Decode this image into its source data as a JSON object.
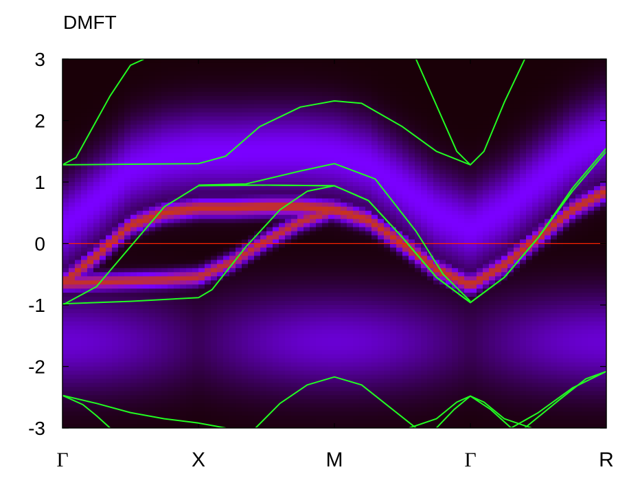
{
  "chart_data": {
    "type": "heatmap",
    "title": "DMFT",
    "xlabel": "",
    "ylabel": "",
    "ylim": [
      -3,
      3
    ],
    "yticks": [
      "3",
      "2",
      "1",
      "0",
      "-1",
      "-2",
      "-3"
    ],
    "ytick_values": [
      3,
      2,
      1,
      0,
      -1,
      -2,
      -3
    ],
    "x_path_labels": [
      "Γ",
      "X",
      "M",
      "Γ",
      "R"
    ],
    "x_path_positions": [
      0,
      1,
      2,
      3,
      4
    ],
    "fermi_level": 0,
    "colors": {
      "background_min": "#1a0008",
      "mid": "#7a00ff",
      "peak": "#d23a00",
      "band_lines": "#22ff22",
      "fermi_line": "#ff2200"
    },
    "spectral_band": {
      "k": [
        0,
        0.25,
        0.5,
        0.75,
        1.0,
        1.25,
        1.5,
        1.75,
        2.0,
        2.25,
        2.5,
        2.75,
        3.0,
        3.25,
        3.5,
        3.75,
        4.0
      ],
      "energy": [
        -0.65,
        -0.2,
        0.3,
        0.5,
        0.58,
        0.58,
        0.6,
        0.6,
        0.55,
        0.38,
        0.0,
        -0.42,
        -0.68,
        -0.35,
        0.1,
        0.55,
        0.85
      ]
    },
    "spectral_band_2": {
      "k": [
        0,
        0.25,
        0.5,
        0.75,
        1.0,
        1.25,
        1.5,
        1.75,
        2.0
      ],
      "energy": [
        -0.65,
        -0.63,
        -0.61,
        -0.59,
        -0.55,
        -0.3,
        0.05,
        0.35,
        0.55
      ]
    },
    "series": [
      {
        "k": [
          0,
          0.1,
          0.2,
          0.35,
          0.5,
          0.6
        ],
        "energy": [
          1.28,
          1.4,
          1.8,
          2.4,
          2.9,
          3.0
        ]
      },
      {
        "k": [
          0,
          0.5,
          1.0,
          1.2,
          1.45,
          1.75,
          2.0,
          2.2,
          2.5,
          2.75,
          3.0
        ],
        "energy": [
          1.28,
          1.29,
          1.3,
          1.42,
          1.9,
          2.22,
          2.32,
          2.28,
          1.9,
          1.5,
          1.28
        ]
      },
      {
        "k": [
          2.6,
          2.75,
          2.9,
          3.0,
          3.1,
          3.25,
          3.4
        ],
        "energy": [
          3.0,
          2.25,
          1.5,
          1.28,
          1.5,
          2.3,
          3.0
        ]
      },
      {
        "k": [
          0,
          0.25,
          0.5,
          0.75,
          1.0,
          1.5,
          2.0,
          2.25,
          2.5,
          2.75,
          3.0,
          3.25,
          3.5,
          3.75,
          4.0
        ],
        "energy": [
          -1.0,
          -0.7,
          -0.05,
          0.6,
          0.94,
          0.95,
          0.94,
          0.7,
          0.1,
          -0.55,
          -0.96,
          -0.55,
          0.1,
          0.9,
          1.55
        ]
      },
      {
        "k": [
          0,
          0.5,
          1.0,
          1.1,
          1.35,
          1.6,
          1.8,
          2.0,
          2.25,
          2.5,
          2.75,
          3.0,
          3.25,
          3.5,
          3.75,
          4.0
        ],
        "energy": [
          -0.98,
          -0.94,
          -0.88,
          -0.75,
          -0.05,
          0.55,
          0.85,
          0.94,
          0.7,
          0.1,
          -0.55,
          -0.96,
          -0.55,
          0.1,
          0.85,
          1.5
        ]
      },
      {
        "k": [
          1.0,
          1.35,
          1.75,
          2.0,
          2.3,
          2.6,
          2.8,
          3.0
        ],
        "energy": [
          0.95,
          0.97,
          1.18,
          1.3,
          1.05,
          0.2,
          -0.5,
          -0.94
        ]
      },
      {
        "k": [
          1.0,
          1.5,
          2.0
        ],
        "energy": [
          0.95,
          0.95,
          0.94
        ]
      },
      {
        "k": [
          0,
          0.25,
          0.5,
          0.75,
          1.0,
          1.1,
          1.2
        ],
        "energy": [
          -2.47,
          -2.6,
          -2.75,
          -2.85,
          -2.92,
          -2.96,
          -3.0
        ]
      },
      {
        "k": [
          0,
          0.15,
          0.25,
          0.35
        ],
        "energy": [
          -2.47,
          -2.62,
          -2.8,
          -3.0
        ]
      },
      {
        "k": [
          1.42,
          1.6,
          1.8,
          2.0,
          2.2,
          2.4,
          2.6
        ],
        "energy": [
          -3.0,
          -2.6,
          -2.3,
          -2.17,
          -2.3,
          -2.65,
          -3.0
        ]
      },
      {
        "k": [
          2.55,
          2.75,
          2.9,
          3.0,
          3.1,
          3.25,
          3.45
        ],
        "energy": [
          -3.0,
          -2.85,
          -2.58,
          -2.48,
          -2.58,
          -2.85,
          -3.0
        ]
      },
      {
        "k": [
          2.75,
          2.88,
          3.0,
          3.15,
          3.3
        ],
        "energy": [
          -3.0,
          -2.7,
          -2.48,
          -2.7,
          -3.0
        ]
      },
      {
        "k": [
          3.3,
          3.5,
          3.75,
          4.0
        ],
        "energy": [
          -3.0,
          -2.75,
          -2.35,
          -2.08
        ]
      },
      {
        "k": [
          3.4,
          3.65,
          3.85,
          4.0
        ],
        "energy": [
          -3.0,
          -2.55,
          -2.2,
          -2.08
        ]
      }
    ]
  }
}
